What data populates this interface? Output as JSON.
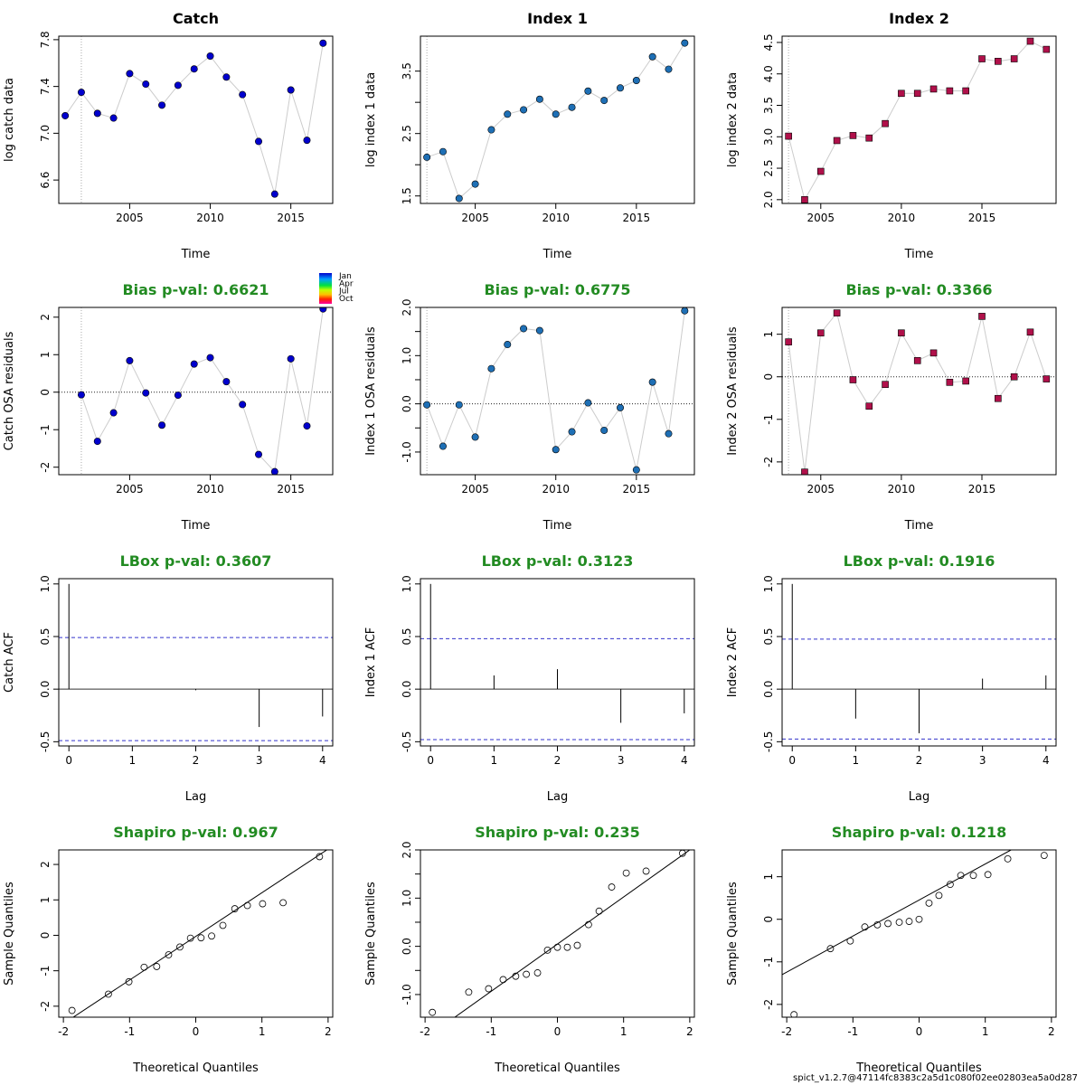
{
  "chart_data": [
    {
      "type": "line",
      "title": "Catch",
      "title_color": "#000000",
      "xlabel": "Time",
      "ylabel": "log catch data",
      "xlim": [
        2000.6,
        2017.6
      ],
      "ylim": [
        6.4,
        7.83
      ],
      "xticks": [
        2005,
        2010,
        2015
      ],
      "yticks": [
        6.6,
        7.0,
        7.4,
        7.8
      ],
      "ytick_labels": [
        "6.6",
        "7.0",
        "7.4",
        "7.8"
      ],
      "vline": 2002,
      "marker": "circle",
      "marker_color": "#0000CD",
      "x": [
        2001,
        2002,
        2003,
        2004,
        2005,
        2006,
        2007,
        2008,
        2009,
        2010,
        2011,
        2012,
        2013,
        2014,
        2015,
        2016,
        2017
      ],
      "y": [
        7.15,
        7.35,
        7.17,
        7.13,
        7.51,
        7.42,
        7.24,
        7.41,
        7.55,
        7.66,
        7.48,
        7.33,
        6.93,
        6.48,
        7.37,
        6.94,
        7.77
      ]
    },
    {
      "type": "line",
      "title": "Index 1",
      "title_color": "#000000",
      "xlabel": "Time",
      "ylabel": "log index 1 data",
      "xlim": [
        2001.6,
        2018.6
      ],
      "ylim": [
        1.38,
        4.06
      ],
      "xticks": [
        2005,
        2010,
        2015
      ],
      "yticks": [
        1.5,
        2.5,
        3.5
      ],
      "ytick_labels": [
        "1.5",
        "2.5",
        "3.5"
      ],
      "minor_yticks": [
        2.0,
        3.0
      ],
      "vline": 2002,
      "marker": "circle",
      "marker_color": "#1E6FB5",
      "x": [
        2002,
        2003,
        2004,
        2005,
        2006,
        2007,
        2008,
        2009,
        2010,
        2011,
        2012,
        2013,
        2014,
        2015,
        2016,
        2017,
        2018
      ],
      "y": [
        2.12,
        2.21,
        1.46,
        1.69,
        2.56,
        2.81,
        2.88,
        3.05,
        2.81,
        2.92,
        3.18,
        3.03,
        3.23,
        3.35,
        3.73,
        3.53,
        3.95
      ]
    },
    {
      "type": "line",
      "title": "Index 2",
      "title_color": "#000000",
      "xlabel": "Time",
      "ylabel": "log index 2 data",
      "xlim": [
        2002.6,
        2019.6
      ],
      "ylim": [
        1.94,
        4.6
      ],
      "xticks": [
        2005,
        2010,
        2015
      ],
      "yticks": [
        2.0,
        2.5,
        3.0,
        3.5,
        4.0,
        4.5
      ],
      "ytick_labels": [
        "2.0",
        "2.5",
        "3.0",
        "3.5",
        "4.0",
        "4.5"
      ],
      "vline": 2003,
      "marker": "square",
      "marker_color": "#B0104A",
      "x": [
        2003,
        2004,
        2005,
        2006,
        2007,
        2008,
        2009,
        2010,
        2011,
        2012,
        2013,
        2014,
        2015,
        2016,
        2017,
        2018,
        2019
      ],
      "y": [
        3.01,
        2.0,
        2.45,
        2.94,
        3.02,
        2.98,
        3.21,
        3.69,
        3.69,
        3.76,
        3.73,
        3.73,
        4.24,
        4.2,
        4.24,
        4.52,
        4.39
      ]
    },
    {
      "type": "line",
      "title": "Bias p-val: 0.6621",
      "title_color": "#228B22",
      "xlabel": "Time",
      "ylabel": "Catch OSA residuals",
      "xlim": [
        2000.6,
        2017.6
      ],
      "ylim": [
        -2.2,
        2.26
      ],
      "xticks": [
        2005,
        2010,
        2015
      ],
      "yticks": [
        -2,
        -1,
        0,
        1,
        2
      ],
      "ytick_labels": [
        "-2",
        "-1",
        "0",
        "1",
        "2"
      ],
      "vline": 2002,
      "hline": 0,
      "marker": "circle",
      "marker_color": "#0000CD",
      "legend": {
        "labels": [
          "Jan",
          "Apr",
          "Jul",
          "Oct"
        ],
        "position": "top-right-outside"
      },
      "x": [
        2002,
        2003,
        2004,
        2005,
        2006,
        2007,
        2008,
        2009,
        2010,
        2011,
        2012,
        2013,
        2014,
        2015,
        2016,
        2017
      ],
      "y": [
        -0.07,
        -1.31,
        -0.55,
        0.84,
        -0.02,
        -0.88,
        -0.08,
        0.75,
        0.92,
        0.28,
        -0.33,
        -1.66,
        -2.12,
        0.89,
        -0.9,
        2.22
      ]
    },
    {
      "type": "line",
      "title": "Bias p-val: 0.6775",
      "title_color": "#228B22",
      "xlabel": "Time",
      "ylabel": "Index 1 OSA residuals",
      "xlim": [
        2001.6,
        2018.6
      ],
      "ylim": [
        -1.47,
        2.0
      ],
      "xticks": [
        2005,
        2010,
        2015
      ],
      "yticks": [
        -1.0,
        0.0,
        1.0,
        2.0
      ],
      "ytick_labels": [
        "-1.0",
        "0.0",
        "1.0",
        "2.0"
      ],
      "minor_yticks": [
        -0.5,
        0.5,
        1.5
      ],
      "vline": 2002,
      "hline": 0,
      "marker": "circle",
      "marker_color": "#1E6FB5",
      "x": [
        2002,
        2003,
        2004,
        2005,
        2006,
        2007,
        2008,
        2009,
        2010,
        2011,
        2012,
        2013,
        2014,
        2015,
        2016,
        2017,
        2018
      ],
      "y": [
        -0.02,
        -0.88,
        -0.02,
        -0.69,
        0.73,
        1.23,
        1.56,
        1.52,
        -0.95,
        -0.58,
        0.02,
        -0.55,
        -0.08,
        -1.37,
        0.45,
        -0.62,
        1.93
      ]
    },
    {
      "type": "line",
      "title": "Bias p-val: 0.3366",
      "title_color": "#228B22",
      "xlabel": "Time",
      "ylabel": "Index 2 OSA residuals",
      "xlim": [
        2002.6,
        2019.6
      ],
      "ylim": [
        -2.3,
        1.63
      ],
      "xticks": [
        2005,
        2010,
        2015
      ],
      "yticks": [
        -2,
        -1,
        0,
        1
      ],
      "ytick_labels": [
        "-2",
        "-1",
        "0",
        "1"
      ],
      "vline": 2003,
      "hline": 0,
      "marker": "square",
      "marker_color": "#B0104A",
      "x": [
        2003,
        2004,
        2005,
        2006,
        2007,
        2008,
        2009,
        2010,
        2011,
        2012,
        2013,
        2014,
        2015,
        2016,
        2017,
        2018,
        2019
      ],
      "y": [
        0.82,
        -2.24,
        1.03,
        1.5,
        -0.07,
        -0.69,
        -0.18,
        1.03,
        0.38,
        0.56,
        -0.13,
        -0.1,
        1.42,
        -0.51,
        0.0,
        1.05,
        -0.05
      ]
    },
    {
      "type": "bar",
      "title": "LBox p-val: 0.3607",
      "title_color": "#228B22",
      "xlabel": "Lag",
      "ylabel": "Catch ACF",
      "xlim": [
        -0.16,
        4.16
      ],
      "ylim": [
        -0.54,
        1.05
      ],
      "xticks": [
        0,
        1,
        2,
        3,
        4
      ],
      "yticks": [
        -0.5,
        0.0,
        0.5,
        1.0
      ],
      "ytick_labels": [
        "-0.5",
        "0.0",
        "0.5",
        "1.0"
      ],
      "hline": 0,
      "confidence": 0.49,
      "confidence_color": "#3333CC",
      "x": [
        0,
        1,
        2,
        3,
        4
      ],
      "y": [
        1.0,
        0.0,
        -0.01,
        -0.36,
        -0.26
      ]
    },
    {
      "type": "bar",
      "title": "LBox p-val: 0.3123",
      "title_color": "#228B22",
      "xlabel": "Lag",
      "ylabel": "Index 1 ACF",
      "xlim": [
        -0.16,
        4.16
      ],
      "ylim": [
        -0.54,
        1.05
      ],
      "xticks": [
        0,
        1,
        2,
        3,
        4
      ],
      "yticks": [
        -0.5,
        0.0,
        0.5,
        1.0
      ],
      "ytick_labels": [
        "-0.5",
        "0.0",
        "0.5",
        "1.0"
      ],
      "hline": 0,
      "confidence": 0.48,
      "confidence_color": "#3333CC",
      "x": [
        0,
        1,
        2,
        3,
        4
      ],
      "y": [
        1.0,
        0.13,
        0.19,
        -0.32,
        -0.23
      ]
    },
    {
      "type": "bar",
      "title": "LBox p-val: 0.1916",
      "title_color": "#228B22",
      "xlabel": "Lag",
      "ylabel": "Index 2 ACF",
      "xlim": [
        -0.16,
        4.16
      ],
      "ylim": [
        -0.54,
        1.05
      ],
      "xticks": [
        0,
        1,
        2,
        3,
        4
      ],
      "yticks": [
        -0.5,
        0.0,
        0.5,
        1.0
      ],
      "ytick_labels": [
        "-0.5",
        "0.0",
        "0.5",
        "1.0"
      ],
      "hline": 0,
      "confidence": 0.475,
      "confidence_color": "#3333CC",
      "x": [
        0,
        1,
        2,
        3,
        4
      ],
      "y": [
        1.0,
        -0.28,
        -0.42,
        0.1,
        0.13
      ]
    },
    {
      "type": "scatter",
      "title": "Shapiro p-val: 0.967",
      "title_color": "#228B22",
      "xlabel": "Theoretical Quantiles",
      "ylabel": "Sample Quantiles",
      "xlim": [
        -2.07,
        2.07
      ],
      "ylim": [
        -2.31,
        2.41
      ],
      "xticks": [
        -2,
        -1,
        0,
        1,
        2
      ],
      "yticks": [
        -2,
        -1,
        0,
        1,
        2
      ],
      "ytick_labels": [
        "-2",
        "-1",
        "0",
        "1",
        "2"
      ],
      "qqline": [
        [
          -2.07,
          -2.58
        ],
        [
          2.07,
          2.52
        ]
      ],
      "x": [
        -1.87,
        -1.32,
        -1.01,
        -0.78,
        -0.59,
        -0.41,
        -0.24,
        -0.08,
        0.08,
        0.24,
        0.41,
        0.59,
        0.78,
        1.01,
        1.32,
        1.87
      ],
      "y": [
        -2.12,
        -1.66,
        -1.31,
        -0.9,
        -0.88,
        -0.55,
        -0.33,
        -0.08,
        -0.07,
        -0.02,
        0.28,
        0.75,
        0.84,
        0.89,
        0.92,
        2.22
      ]
    },
    {
      "type": "scatter",
      "title": "Shapiro p-val: 0.235",
      "title_color": "#228B22",
      "xlabel": "Theoretical Quantiles",
      "ylabel": "Sample Quantiles",
      "xlim": [
        -2.07,
        2.07
      ],
      "ylim": [
        -1.47,
        2.0
      ],
      "xticks": [
        -2,
        -1,
        0,
        1,
        2
      ],
      "yticks": [
        -1.0,
        0.0,
        1.0,
        2.0
      ],
      "ytick_labels": [
        "-1.0",
        "0.0",
        "1.0",
        "2.0"
      ],
      "minor_yticks": [
        -0.5,
        0.5,
        1.5
      ],
      "qqline": [
        [
          -1.55,
          -1.47
        ],
        [
          2.07,
          2.07
        ]
      ],
      "x": [
        -1.89,
        -1.34,
        -1.04,
        -0.82,
        -0.63,
        -0.47,
        -0.3,
        -0.15,
        0.0,
        0.15,
        0.3,
        0.47,
        0.63,
        0.82,
        1.04,
        1.34,
        1.89
      ],
      "y": [
        -1.37,
        -0.95,
        -0.88,
        -0.69,
        -0.62,
        -0.58,
        -0.55,
        -0.08,
        -0.02,
        -0.02,
        0.02,
        0.45,
        0.73,
        1.23,
        1.52,
        1.56,
        1.93
      ]
    },
    {
      "type": "scatter",
      "title": "Shapiro p-val: 0.1218",
      "title_color": "#228B22",
      "xlabel": "Theoretical Quantiles",
      "ylabel": "Sample Quantiles",
      "xlim": [
        -2.07,
        2.07
      ],
      "ylim": [
        -2.3,
        1.63
      ],
      "xticks": [
        -2,
        -1,
        0,
        1,
        2
      ],
      "yticks": [
        -2,
        -1,
        0,
        1
      ],
      "ytick_labels": [
        "-2",
        "-1",
        "0",
        "1"
      ],
      "qqline": [
        [
          -2.07,
          -1.3
        ],
        [
          1.39,
          1.63
        ]
      ],
      "x": [
        -1.89,
        -1.34,
        -1.04,
        -0.82,
        -0.63,
        -0.47,
        -0.3,
        -0.15,
        0.0,
        0.15,
        0.3,
        0.47,
        0.63,
        0.82,
        1.04,
        1.34,
        1.89
      ],
      "y": [
        -2.24,
        -0.69,
        -0.51,
        -0.18,
        -0.13,
        -0.1,
        -0.07,
        -0.05,
        0.0,
        0.38,
        0.56,
        0.82,
        1.03,
        1.03,
        1.05,
        1.42,
        1.5
      ]
    }
  ],
  "footer": "spict_v1.2.7@47114fc8383c2a5d1c080f02ee02803ea5a0d287"
}
